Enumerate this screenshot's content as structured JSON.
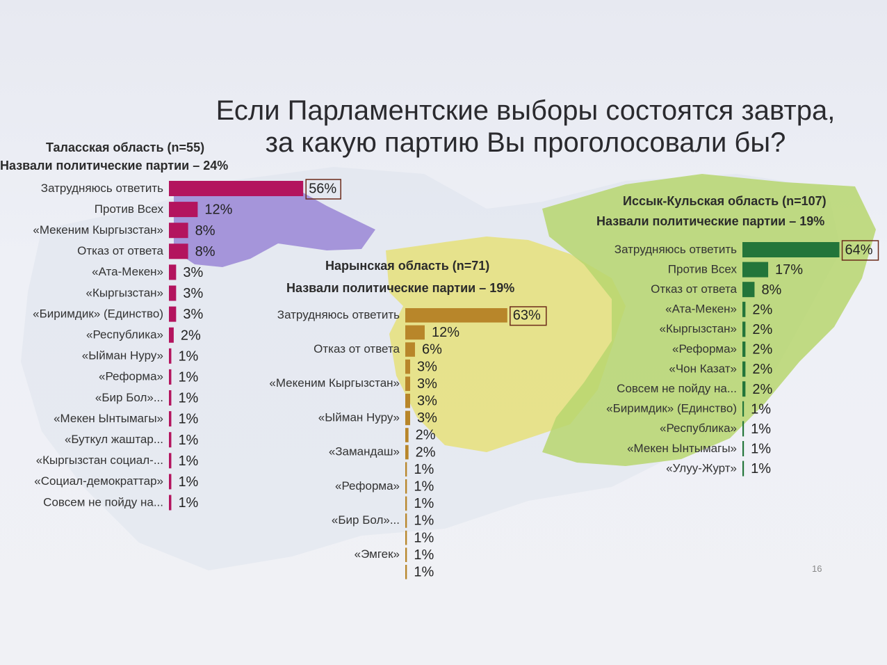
{
  "slide": {
    "title_line1": "Если Парламентские выборы состоятся завтра,",
    "title_line2": "за какую партию Вы проголосовали бы?",
    "page_number": "16"
  },
  "colors": {
    "talas": "#b3145e",
    "naryn": "#b8862a",
    "issyk_kul": "#23753a",
    "map_talas": "#9a86d6",
    "map_naryn": "#e6e07a",
    "map_issyk": "#b7d66e"
  },
  "panels": {
    "talas": {
      "title": "Таласская область (n=55)",
      "subtitle": "Назвали политические партии – 24%"
    },
    "naryn": {
      "title": "Нарынская область (n=71)",
      "subtitle": "Назвали политические партии – 19%"
    },
    "issyk_kul": {
      "title": "Иссык-Кульская область (n=107)",
      "subtitle": "Назвали политические партии – 19%"
    }
  },
  "chart_data": [
    {
      "type": "bar",
      "orientation": "horizontal",
      "title": "Таласская область (n=55)",
      "subtitle": "Назвали политические партии – 24%",
      "color": "#b3145e",
      "categories": [
        "Затрудняюсь ответить",
        "Против Всех",
        "«Мекеним Кыргызстан»",
        "Отказ от ответа",
        "«Ата-Мекен»",
        "«Кыргызстан»",
        "«Биримдик» (Единство)",
        "«Республика»",
        "«Ыйман Нуру»",
        "«Реформа»",
        "«Бир Бол»...",
        "«Мекен Ынтымагы»",
        "«Буткул жаштар...",
        "«Кыргызстан социал-...",
        "«Социал-демократтар»",
        "Совсем не пойду на..."
      ],
      "values": [
        56,
        12,
        8,
        8,
        3,
        3,
        3,
        2,
        1,
        1,
        1,
        1,
        1,
        1,
        1,
        1
      ],
      "labels": [
        "56%",
        "12%",
        "8%",
        "8%",
        "3%",
        "3%",
        "3%",
        "2%",
        "1%",
        "1%",
        "1%",
        "1%",
        "1%",
        "1%",
        "1%",
        "1%"
      ],
      "highlight_first": true
    },
    {
      "type": "bar",
      "orientation": "horizontal",
      "title": "Нарынская область (n=71)",
      "subtitle": "Назвали политические партии – 19%",
      "color": "#b8862a",
      "categories": [
        "Затрудняюсь ответить",
        "",
        "Отказ от ответа",
        "",
        "«Мекеним Кыргызстан»",
        "",
        "«Ыйман Нуру»",
        "",
        "«Замандаш»",
        "",
        "«Реформа»",
        "",
        "«Бир Бол»...",
        "",
        "«Эмгек»",
        ""
      ],
      "values": [
        63,
        12,
        6,
        3,
        3,
        3,
        3,
        2,
        2,
        1,
        1,
        1,
        1,
        1,
        1,
        1
      ],
      "labels": [
        "63%",
        "12%",
        "6%",
        "3%",
        "3%",
        "3%",
        "3%",
        "2%",
        "2%",
        "1%",
        "1%",
        "1%",
        "1%",
        "1%",
        "1%",
        "1%"
      ],
      "highlight_first": true
    },
    {
      "type": "bar",
      "orientation": "horizontal",
      "title": "Иссык-Кульская область (n=107)",
      "subtitle": "Назвали политические партии – 19%",
      "color": "#23753a",
      "categories": [
        "Затрудняюсь ответить",
        "Против Всех",
        "Отказ от ответа",
        "«Ата-Мекен»",
        "«Кыргызстан»",
        "«Реформа»",
        "«Чон Казат»",
        "Совсем не пойду на...",
        "«Биримдик» (Единство)",
        "«Республика»",
        "«Мекен Ынтымагы»",
        "«Улуу-Журт»"
      ],
      "values": [
        64,
        17,
        8,
        2,
        2,
        2,
        2,
        2,
        1,
        1,
        1,
        1
      ],
      "labels": [
        "64%",
        "17%",
        "8%",
        "2%",
        "2%",
        "2%",
        "2%",
        "2%",
        "1%",
        "1%",
        "1%",
        "1%"
      ],
      "highlight_first": true
    }
  ]
}
